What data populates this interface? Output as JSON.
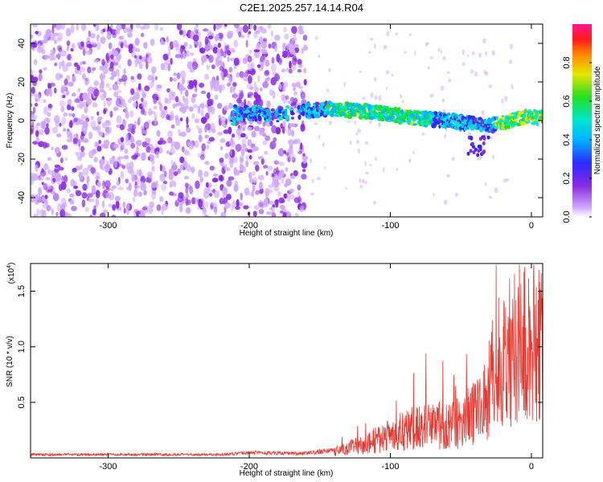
{
  "title": "C2E1.2025.257.14.14.R04",
  "colors": {
    "snr_line": "#e63a32",
    "frame": "#000000"
  },
  "chart_data": [
    {
      "type": "heatmap",
      "name": "spectrogram",
      "xlabel": "Height of straight line (km)",
      "ylabel": "Frequency (Hz)",
      "xlim": [
        -355,
        8
      ],
      "ylim": [
        -50,
        50
      ],
      "x_ticks": [
        -300,
        -200,
        -100,
        0
      ],
      "y_ticks": [
        -40,
        -20,
        0,
        20,
        40
      ],
      "colorbar": {
        "label": "Normalized spectral amplitude",
        "range": [
          0,
          1
        ],
        "ticks": [
          "0.0",
          "0.2",
          "0.4",
          "0.6",
          "0.8"
        ],
        "colormap": "rainbow (white-violet-blue-cyan-green-yellow-red-magenta)"
      },
      "ridge": {
        "description": "strong doppler trace",
        "points": [
          [
            -210,
            4
          ],
          [
            -180,
            3
          ],
          [
            -160,
            5
          ],
          [
            -140,
            6
          ],
          [
            -120,
            5
          ],
          [
            -100,
            3
          ],
          [
            -80,
            1
          ],
          [
            -60,
            0
          ],
          [
            -40,
            -2
          ],
          [
            -30,
            -3
          ],
          [
            -20,
            -1
          ],
          [
            -10,
            1
          ],
          [
            0,
            2
          ],
          [
            8,
            1
          ]
        ]
      },
      "noise_band": {
        "x_range": [
          -355,
          -160
        ],
        "y_range": [
          -50,
          50
        ]
      }
    },
    {
      "type": "line",
      "name": "snr",
      "xlabel": "Height of straight line (km)",
      "ylabel": "SNR (10 * v/v)",
      "y_multiplier": "(x10",
      "y_multiplier_exp": "4",
      "y_multiplier_close": ")",
      "xlim": [
        -355,
        8
      ],
      "ylim": [
        0,
        1.75
      ],
      "x_ticks": [
        -300,
        -200,
        -100,
        0
      ],
      "y_ticks": [
        "0.5",
        "1.0",
        "1.5"
      ],
      "y_tick_values": [
        0.5,
        1.0,
        1.5
      ],
      "envelope": [
        [
          -355,
          0.03
        ],
        [
          -220,
          0.03
        ],
        [
          -200,
          0.045
        ],
        [
          -160,
          0.04
        ],
        [
          -140,
          0.07
        ],
        [
          -120,
          0.15
        ],
        [
          -100,
          0.25
        ],
        [
          -85,
          0.35
        ],
        [
          -70,
          0.38
        ],
        [
          -60,
          0.35
        ],
        [
          -50,
          0.4
        ],
        [
          -40,
          0.5
        ],
        [
          -32,
          0.65
        ],
        [
          -28,
          0.9
        ],
        [
          -22,
          1.1
        ],
        [
          -15,
          1.2
        ],
        [
          -10,
          1.3
        ],
        [
          -5,
          1.25
        ],
        [
          0,
          1.3
        ],
        [
          8,
          1.35
        ]
      ]
    }
  ]
}
